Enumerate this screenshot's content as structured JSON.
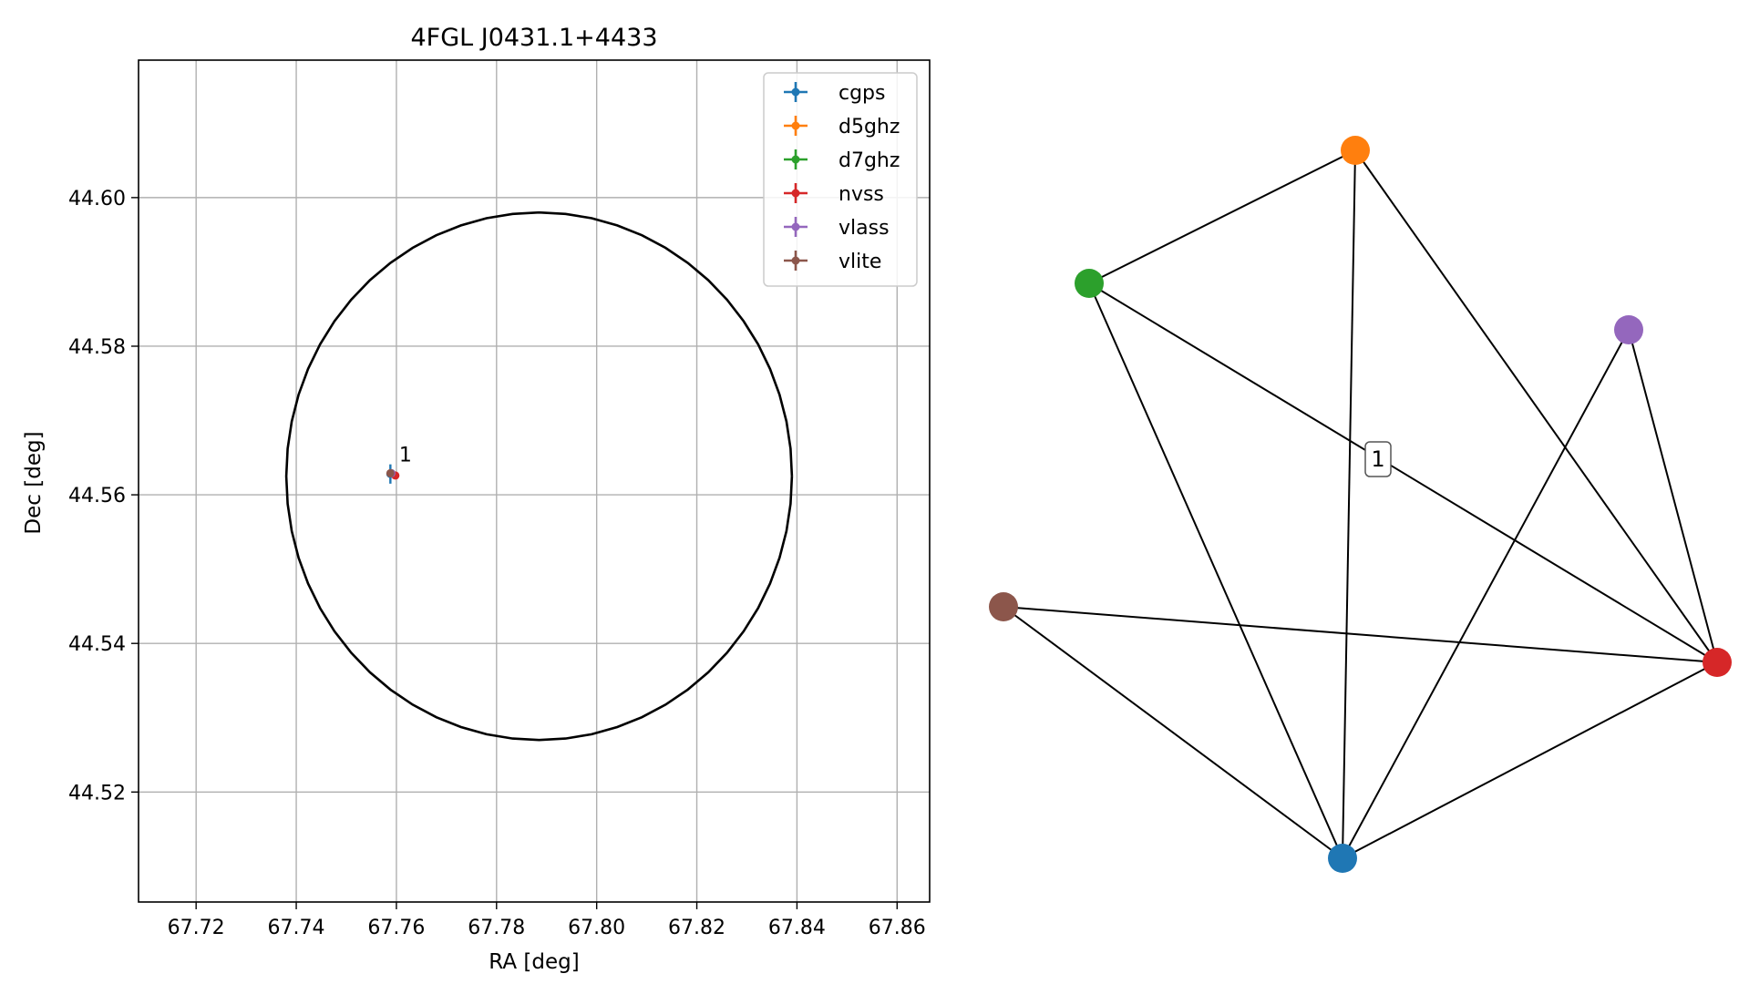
{
  "chart_data": [
    {
      "type": "scatter",
      "title": "4FGL J0431.1+4433",
      "xlabel": "RA [deg]",
      "ylabel": "Dec [deg]",
      "xlim": [
        67.7085,
        67.8665
      ],
      "ylim": [
        44.5052,
        44.6185
      ],
      "xticks": [
        "67.72",
        "67.74",
        "67.76",
        "67.78",
        "67.80",
        "67.82",
        "67.84",
        "67.86"
      ],
      "yticks": [
        "44.52",
        "44.54",
        "44.56",
        "44.58",
        "44.60"
      ],
      "grid": true,
      "legend_position": "upper right",
      "series": [
        {
          "name": "cgps",
          "color": "#1f77b4",
          "x": 67.7588,
          "y": 44.5628,
          "xerr": 0.0004,
          "yerr": 0.0013
        },
        {
          "name": "d5ghz",
          "color": "#ff7f0e",
          "x": 67.759,
          "y": 44.5629,
          "xerr": 0.0003,
          "yerr": 0.0003
        },
        {
          "name": "d7ghz",
          "color": "#2ca02c",
          "x": 67.759,
          "y": 44.5629,
          "xerr": 0.0003,
          "yerr": 0.0003
        },
        {
          "name": "nvss",
          "color": "#d62728",
          "x": 67.7598,
          "y": 44.5626,
          "xerr": 0.0003,
          "yerr": 0.0002
        },
        {
          "name": "vlass",
          "color": "#9467bd",
          "x": 67.759,
          "y": 44.5629,
          "xerr": 0.0002,
          "yerr": 0.0002
        },
        {
          "name": "vlite",
          "color": "#8c564b",
          "x": 67.7588,
          "y": 44.5629,
          "xerr": 0.0003,
          "yerr": 0.0002
        }
      ],
      "ellipse": {
        "center": [
          67.7885,
          44.5625
        ],
        "semi_ra": 0.0505,
        "semi_dec": 0.0355,
        "color": "#000000"
      },
      "annotations": [
        {
          "text": "1",
          "x": 67.76,
          "y": 44.5645
        }
      ]
    },
    {
      "type": "graph",
      "nodes": [
        {
          "id": "cgps",
          "color": "#1f77b4"
        },
        {
          "id": "d5ghz",
          "color": "#ff7f0e"
        },
        {
          "id": "d7ghz",
          "color": "#2ca02c"
        },
        {
          "id": "nvss",
          "color": "#d62728"
        },
        {
          "id": "vlass",
          "color": "#9467bd"
        },
        {
          "id": "vlite",
          "color": "#8c564b"
        }
      ],
      "edges": [
        [
          "d7ghz",
          "d5ghz"
        ],
        [
          "d7ghz",
          "nvss"
        ],
        [
          "d7ghz",
          "cgps"
        ],
        [
          "d5ghz",
          "cgps"
        ],
        [
          "d5ghz",
          "nvss"
        ],
        [
          "vlass",
          "cgps"
        ],
        [
          "vlass",
          "nvss"
        ],
        [
          "vlite",
          "cgps"
        ],
        [
          "vlite",
          "nvss"
        ],
        [
          "cgps",
          "nvss"
        ]
      ],
      "label": "1"
    }
  ]
}
